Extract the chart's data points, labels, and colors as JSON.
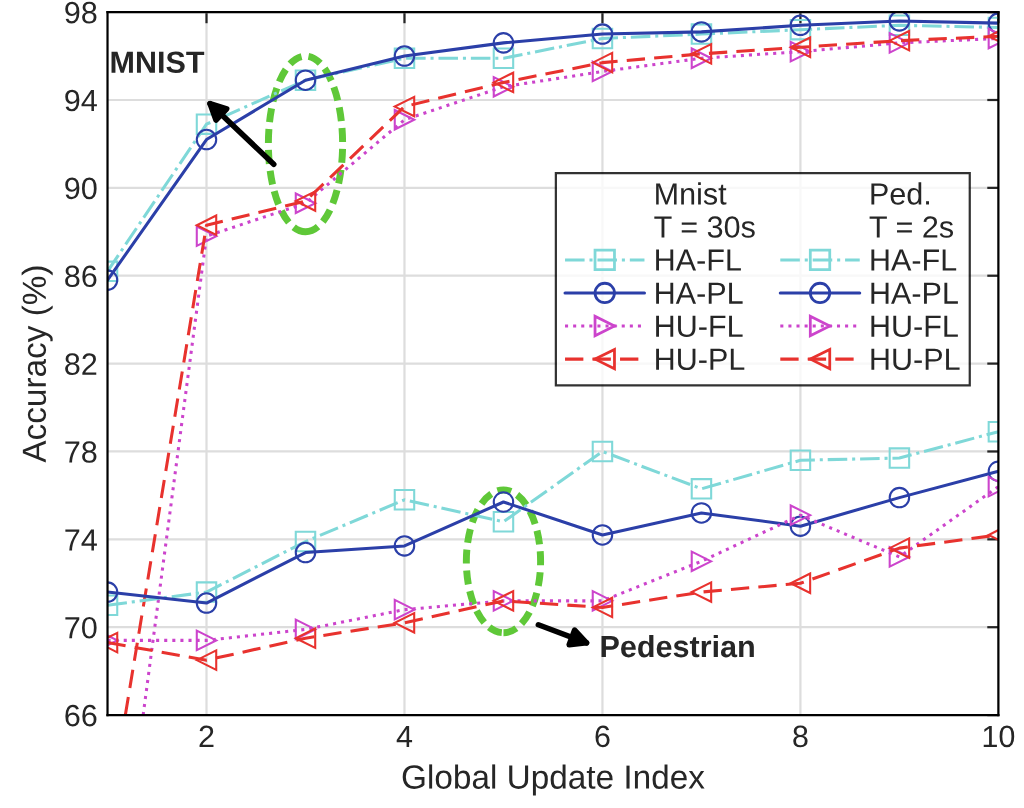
{
  "chart_data": {
    "type": "line",
    "xlabel": "Global Update Index",
    "ylabel": "Accuracy (%)",
    "x": [
      1,
      2,
      3,
      4,
      5,
      6,
      7,
      8,
      9,
      10
    ],
    "xlim": [
      1,
      10
    ],
    "xticks": [
      2,
      4,
      6,
      8,
      10
    ],
    "ylim": [
      66,
      98
    ],
    "yticks": [
      66,
      70,
      74,
      78,
      82,
      86,
      90,
      94,
      98
    ],
    "grid": true,
    "legend": "center right",
    "series": [
      {
        "name": "HA-FL",
        "color": "#7fd8d8",
        "marker": "square",
        "line_style": "dashdot",
        "values": [
          86.2,
          92.9,
          94.9,
          95.9,
          95.9,
          96.8,
          97.0,
          97.2,
          97.4,
          97.3
        ]
      },
      {
        "name": "HA-PL",
        "color": "#2b3fa8",
        "marker": "circle",
        "line_style": "solid",
        "values": [
          85.8,
          92.2,
          94.9,
          96.0,
          96.6,
          97.0,
          97.1,
          97.4,
          97.6,
          97.5
        ]
      },
      {
        "name": "HU-FL",
        "color": "#cc44cc",
        "marker": "triangle_right",
        "line_style": "dotted",
        "x": [
          1.36,
          2,
          3,
          4,
          5,
          6,
          7,
          8,
          9,
          10
        ],
        "values": [
          66,
          87.8,
          89.3,
          93.1,
          94.6,
          95.3,
          95.9,
          96.2,
          96.6,
          96.8
        ]
      },
      {
        "name": "HU-PL",
        "color": "#e8322e",
        "marker": "triangle_left",
        "line_style": "dashed",
        "x": [
          1.18,
          2,
          3,
          4,
          5,
          6,
          7,
          8,
          9,
          10
        ],
        "values": [
          66,
          88.3,
          89.4,
          93.7,
          94.8,
          95.7,
          96.1,
          96.4,
          96.7,
          96.9
        ]
      },
      {
        "name": "HA-FL",
        "color": "#7fd8d8",
        "marker": "square",
        "line_style": "dashdot",
        "values": [
          71.0,
          71.6,
          73.9,
          75.8,
          74.8,
          78.0,
          76.3,
          77.6,
          77.7,
          78.9
        ]
      },
      {
        "name": "HA-PL",
        "color": "#2b3fa8",
        "marker": "circle",
        "line_style": "solid",
        "values": [
          71.6,
          71.1,
          73.4,
          73.7,
          75.7,
          74.2,
          75.2,
          74.6,
          75.9,
          77.1
        ]
      },
      {
        "name": "HU-FL",
        "color": "#cc44cc",
        "marker": "triangle_right",
        "line_style": "dotted",
        "values": [
          69.4,
          69.4,
          69.9,
          70.8,
          71.2,
          71.2,
          73.0,
          75.1,
          73.2,
          76.4
        ]
      },
      {
        "name": "HU-PL",
        "color": "#e8322e",
        "marker": "triangle_left",
        "line_style": "dashed",
        "values": [
          69.3,
          68.5,
          69.5,
          70.2,
          71.2,
          70.9,
          71.6,
          72.0,
          73.6,
          74.2
        ]
      }
    ],
    "annotations": [
      "MNIST",
      "Pedestrian",
      "Mnist",
      "T = 30s",
      "Ped.",
      "T = 2s"
    ]
  }
}
